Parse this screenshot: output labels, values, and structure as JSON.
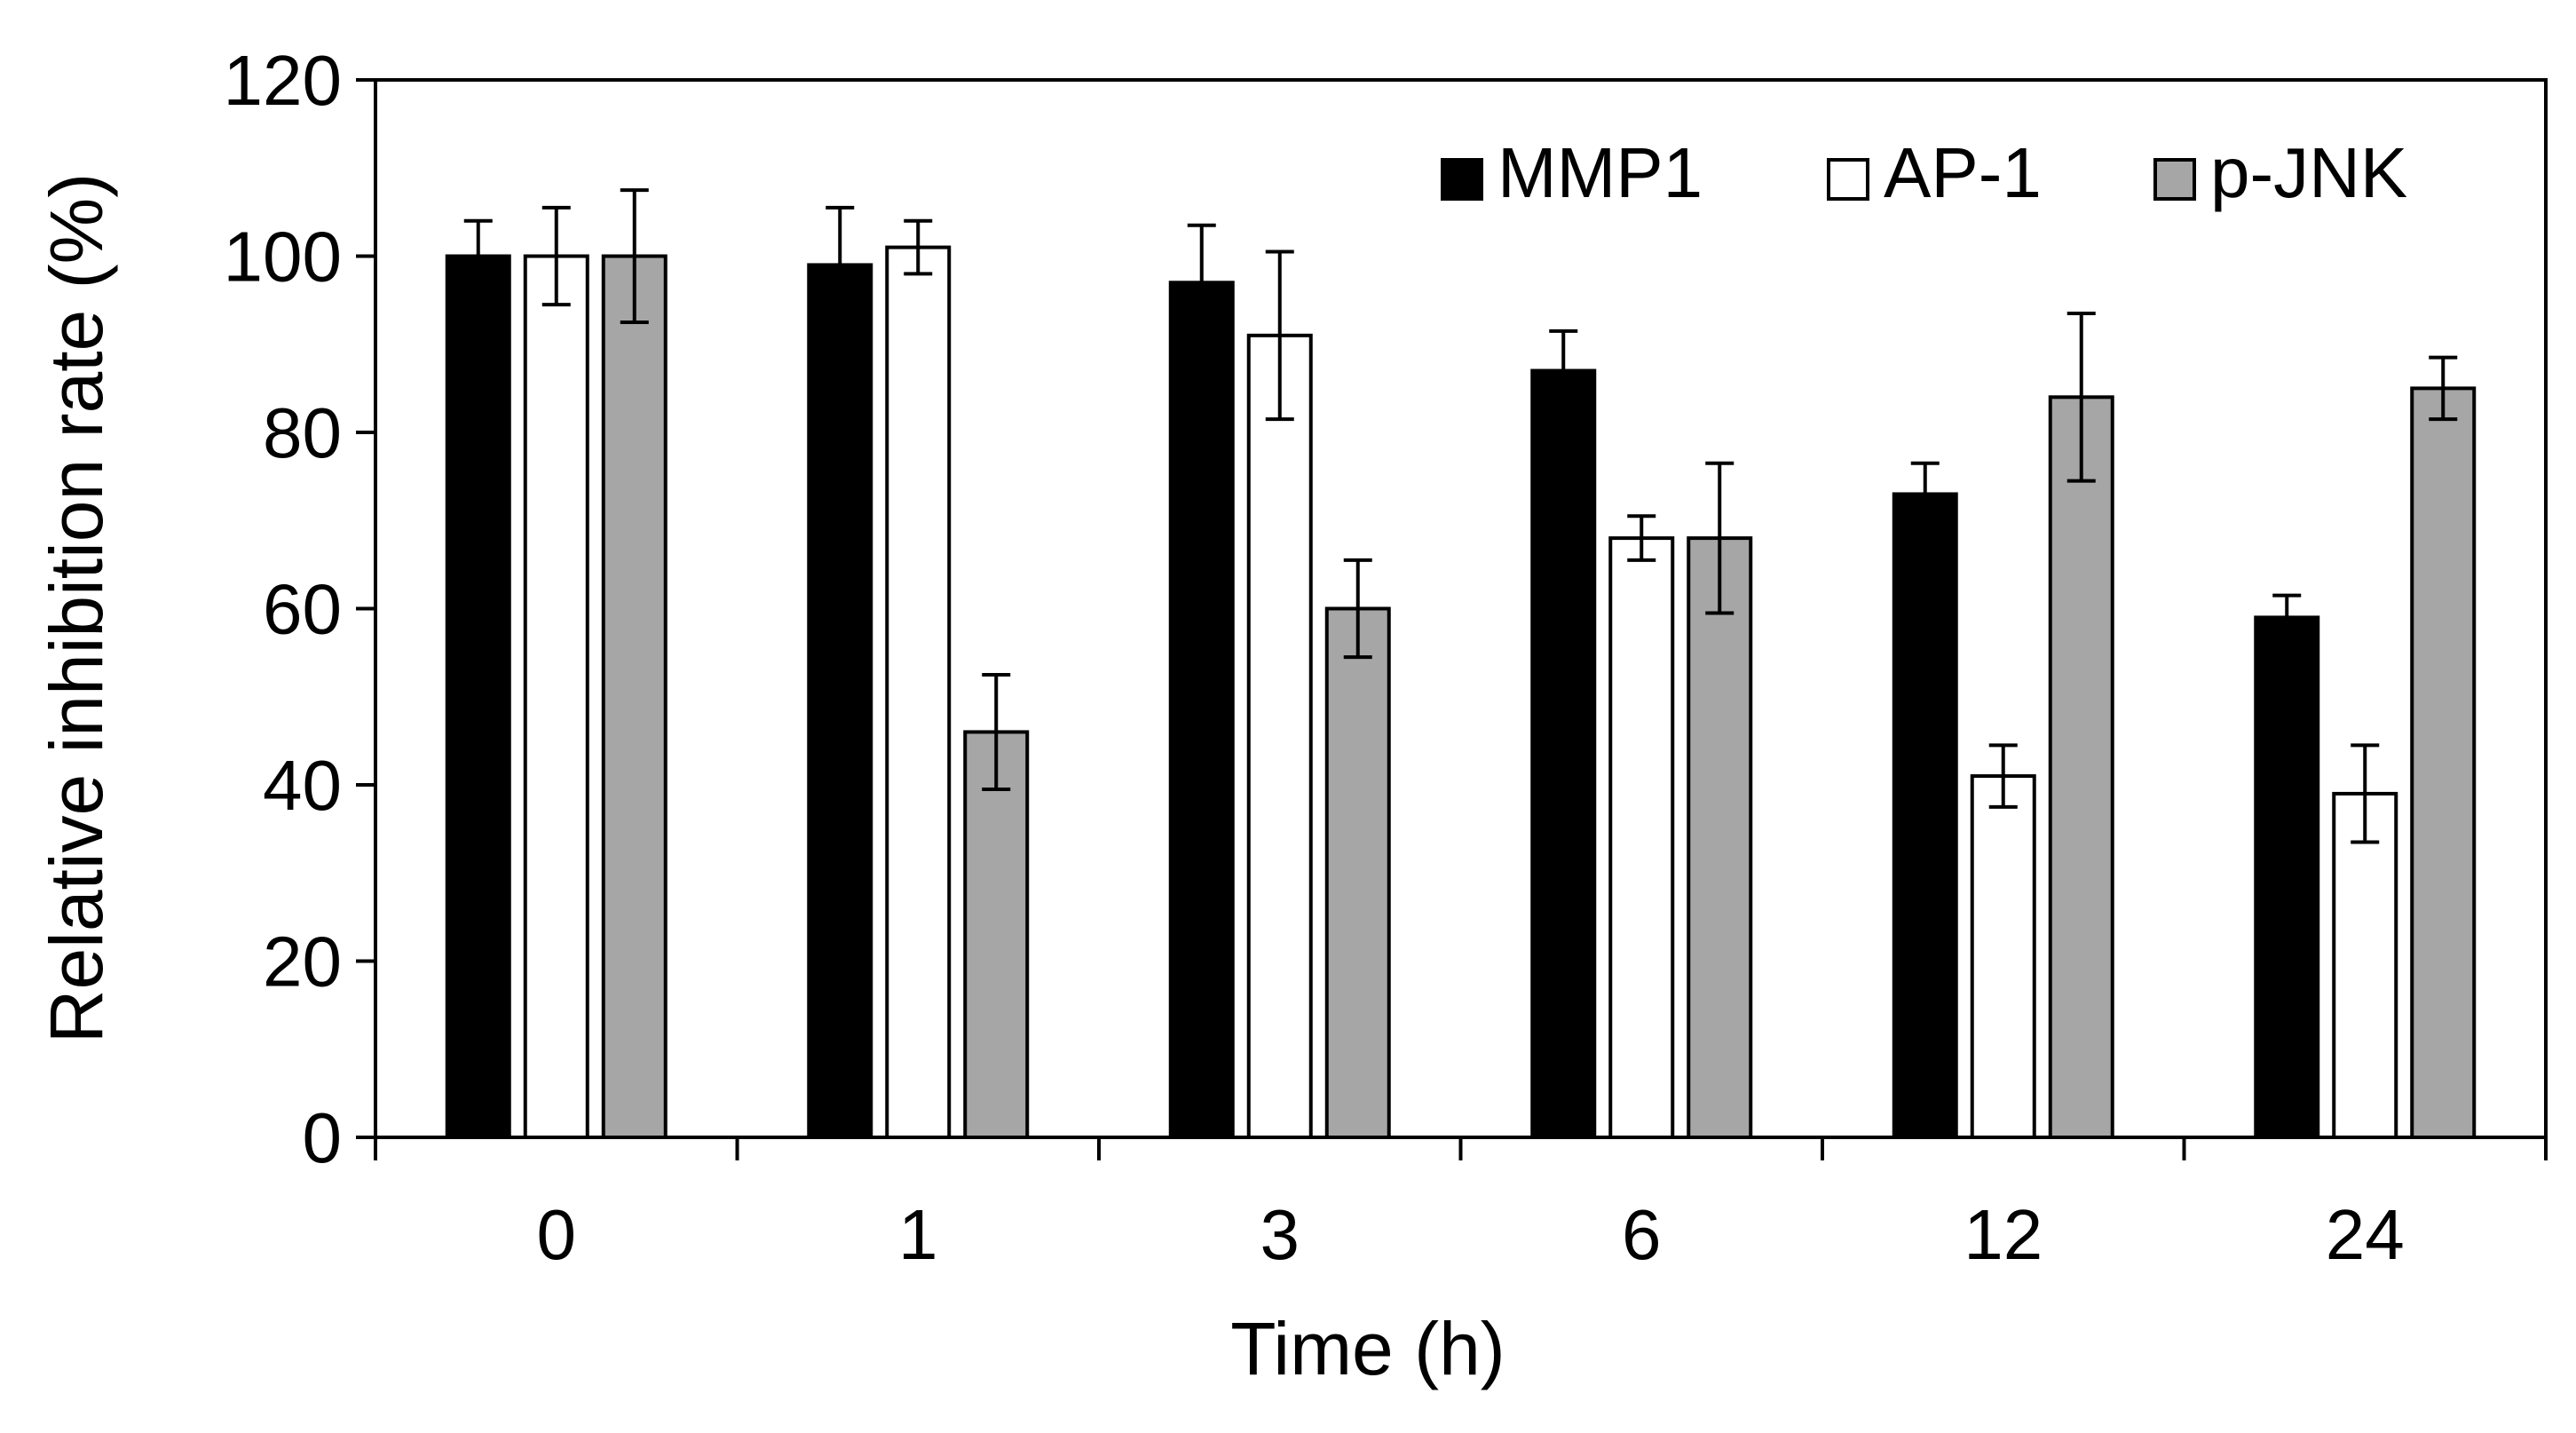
{
  "chart_data": {
    "type": "bar",
    "title": "",
    "xlabel": "Time (h)",
    "ylabel": "Relative inhibition rate (%)",
    "categories": [
      "0",
      "1",
      "3",
      "6",
      "12",
      "24"
    ],
    "ylim": [
      0,
      120
    ],
    "yticks": [
      "0",
      "20",
      "40",
      "60",
      "80",
      "100",
      "120"
    ],
    "grid": false,
    "legend_position": "top-right",
    "series": [
      {
        "name": "MMP1",
        "color": "#000000",
        "values": [
          100,
          99,
          97,
          87,
          73,
          59
        ],
        "errors": [
          4,
          6.5,
          6.5,
          4.5,
          3.5,
          2.5
        ]
      },
      {
        "name": "AP-1",
        "color": "#ffffff",
        "values": [
          100,
          101,
          91,
          68,
          41,
          39
        ],
        "errors": [
          5.5,
          3,
          9.5,
          2.5,
          3.5,
          5.5
        ]
      },
      {
        "name": "p-JNK",
        "color": "#a6a6a6",
        "values": [
          100,
          46,
          60,
          68,
          84,
          85
        ],
        "errors": [
          7.5,
          6.5,
          5.5,
          8.5,
          9.5,
          3.5
        ]
      }
    ]
  }
}
